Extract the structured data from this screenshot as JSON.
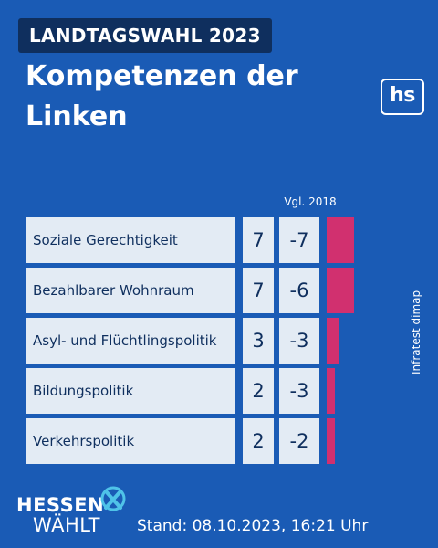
{
  "header": {
    "badge": "LANDTAGSWAHL 2023",
    "title_line1": "Kompetenzen der",
    "title_line2": "Linken",
    "logo": "hs"
  },
  "chart_data": {
    "type": "bar",
    "compare_label": "Vgl. 2018",
    "categories": [
      "Soziale Gerechtigkeit",
      "Bezahlbarer Wohnraum",
      "Asyl- und Flüchtlingspolitik",
      "Bildungspolitik",
      "Verkehrspolitik"
    ],
    "values": [
      7,
      7,
      3,
      2,
      2
    ],
    "changes": [
      "-7",
      "-6",
      "-3",
      "-3",
      "-2"
    ],
    "bar_color": "#d1306f",
    "xlim": [
      0,
      7
    ]
  },
  "footer": {
    "brand_line1": "HESSEN",
    "brand_line2": "WÄHLT",
    "stand": "Stand: 08.10.2023, 16:21 Uhr",
    "source": "Infratest dimap"
  },
  "colors": {
    "background": "#1a5bb5",
    "badge": "#0f2f5e",
    "cell": "#e3ebf4",
    "accent": "#d1306f",
    "icon_accent": "#4fc3e8"
  }
}
